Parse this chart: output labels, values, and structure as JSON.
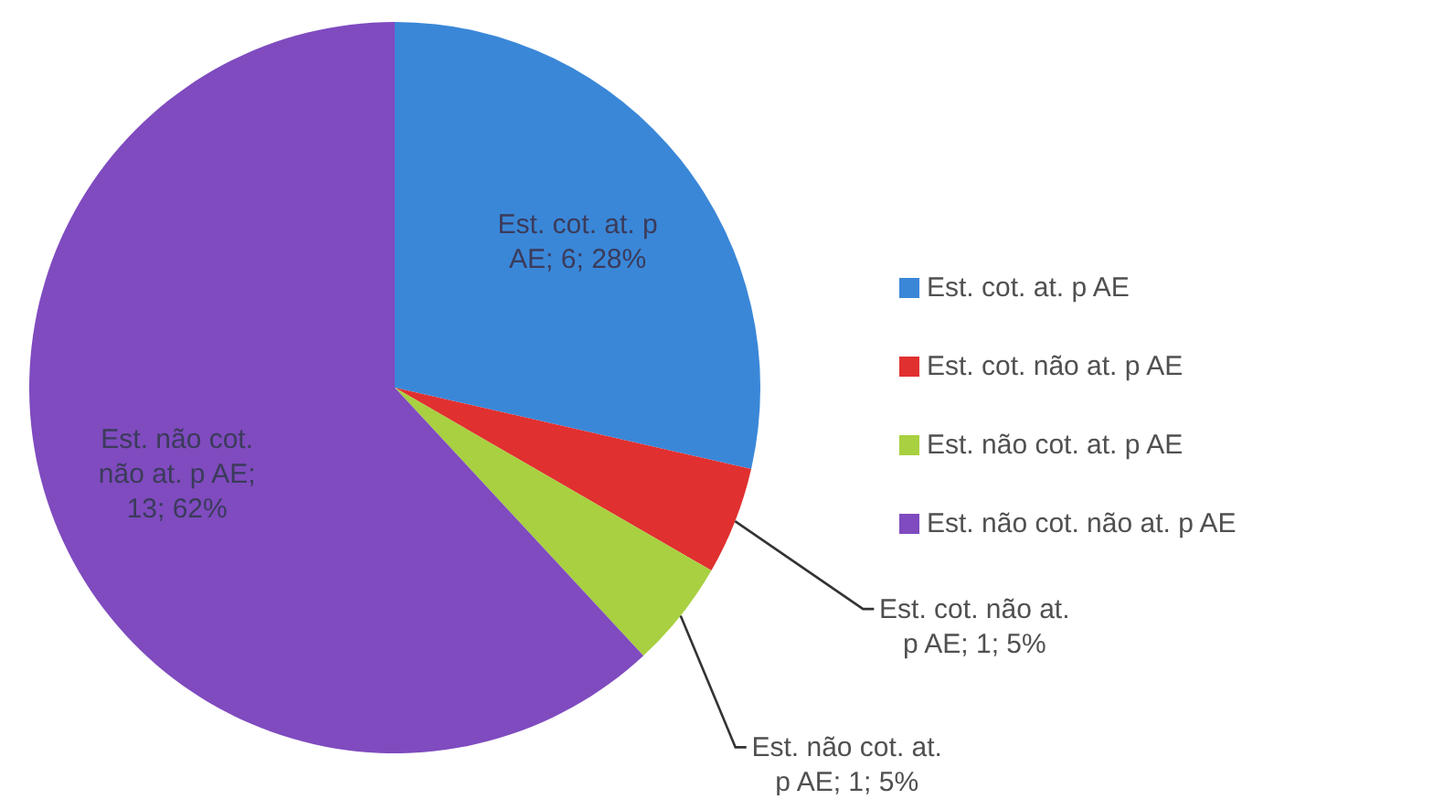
{
  "chart_data": {
    "type": "pie",
    "categories": [
      "Est. cot. at. p AE",
      "Est. cot. não at. p AE",
      "Est. não cot. at. p AE",
      "Est. não cot. não at. p AE"
    ],
    "values": [
      6,
      1,
      1,
      13
    ],
    "colors": [
      "#3a87d8",
      "#e03030",
      "#a8d040",
      "#7f4bbf"
    ],
    "value_labels": [
      "Est. cot. at. p AE; 6; 28%",
      "Est. cot. não at. p AE; 1; 5%",
      "Est. não cot. at. p AE; 1; 5%",
      "Est. não cot. não at. p AE; 13; 62%"
    ],
    "legend": "right"
  }
}
